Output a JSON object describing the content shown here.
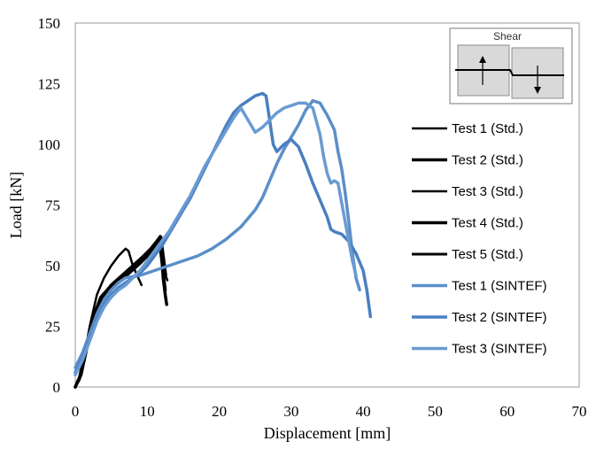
{
  "chart_data": {
    "type": "line",
    "xlabel": "Displacement [mm]",
    "ylabel": "Load [kN]",
    "xlim": [
      0,
      70
    ],
    "ylim": [
      0,
      150
    ],
    "xticks": [
      0,
      10,
      20,
      30,
      40,
      50,
      60,
      70
    ],
    "yticks": [
      0,
      25,
      50,
      75,
      100,
      125,
      150
    ],
    "grid": false,
    "legend_position": "right",
    "inset_label": "Shear",
    "series": [
      {
        "name": "Test 1 (Std.)",
        "color": "#000000",
        "width": 2.5,
        "points": [
          [
            0,
            0
          ],
          [
            0.6,
            3
          ],
          [
            1.2,
            12
          ],
          [
            2,
            25
          ],
          [
            3,
            38
          ],
          [
            4,
            45
          ],
          [
            5,
            50
          ],
          [
            6,
            54
          ],
          [
            7,
            57
          ],
          [
            7.4,
            56
          ],
          [
            8,
            50
          ],
          [
            8.6,
            46
          ],
          [
            9.2,
            42
          ]
        ]
      },
      {
        "name": "Test 2 (Std.)",
        "color": "#000000",
        "width": 3.5,
        "points": [
          [
            0,
            0
          ],
          [
            0.8,
            5
          ],
          [
            1.6,
            16
          ],
          [
            2.5,
            28
          ],
          [
            3.5,
            36
          ],
          [
            5,
            42
          ],
          [
            6.5,
            46
          ],
          [
            8,
            50
          ],
          [
            9.5,
            54
          ],
          [
            10.5,
            57
          ],
          [
            11.3,
            60
          ],
          [
            11.8,
            62
          ],
          [
            12,
            55
          ],
          [
            12.2,
            45
          ],
          [
            12.5,
            38
          ],
          [
            12.7,
            34
          ]
        ]
      },
      {
        "name": "Test 3 (Std.)",
        "color": "#000000",
        "width": 2.5,
        "points": [
          [
            0,
            0
          ],
          [
            0.7,
            4
          ],
          [
            1.5,
            14
          ],
          [
            2.3,
            24
          ],
          [
            3.3,
            33
          ],
          [
            4.5,
            39
          ],
          [
            6,
            43
          ],
          [
            7.5,
            48
          ],
          [
            9,
            52
          ],
          [
            10.5,
            57
          ],
          [
            11.5,
            61
          ],
          [
            12,
            54
          ],
          [
            12.4,
            47
          ],
          [
            12.8,
            44
          ]
        ]
      },
      {
        "name": "Test 4 (Std.)",
        "color": "#000000",
        "width": 3.5,
        "points": [
          [
            0,
            0
          ],
          [
            0.6,
            4
          ],
          [
            1.4,
            15
          ],
          [
            2.2,
            26
          ],
          [
            3.2,
            34
          ],
          [
            4.5,
            39
          ],
          [
            6,
            43
          ],
          [
            7.5,
            47
          ],
          [
            9,
            51
          ],
          [
            10,
            54
          ],
          [
            11,
            58
          ],
          [
            11.7,
            60
          ],
          [
            12.1,
            50
          ],
          [
            12.5,
            40
          ]
        ]
      },
      {
        "name": "Test 5 (Std.)",
        "color": "#000000",
        "width": 3,
        "points": [
          [
            0,
            0
          ],
          [
            0.7,
            5
          ],
          [
            1.6,
            17
          ],
          [
            2.5,
            29
          ],
          [
            3.5,
            37
          ],
          [
            5,
            42
          ],
          [
            6.5,
            46
          ],
          [
            8,
            50
          ],
          [
            9.5,
            53
          ],
          [
            10.8,
            56
          ],
          [
            11.5,
            59
          ],
          [
            11.9,
            62
          ],
          [
            12.2,
            55
          ],
          [
            12.6,
            46
          ]
        ]
      },
      {
        "name": "Test 1 (SINTEF)",
        "color": "#5b8fc9",
        "width": 3.5,
        "points": [
          [
            0,
            8
          ],
          [
            1,
            14
          ],
          [
            2,
            22
          ],
          [
            3,
            30
          ],
          [
            4,
            36
          ],
          [
            5,
            40
          ],
          [
            6,
            43
          ],
          [
            7,
            45
          ],
          [
            9,
            46
          ],
          [
            11,
            48
          ],
          [
            13,
            50
          ],
          [
            15,
            52
          ],
          [
            17,
            54
          ],
          [
            19,
            57
          ],
          [
            21,
            61
          ],
          [
            23,
            66
          ],
          [
            25,
            73
          ],
          [
            26,
            78
          ],
          [
            27,
            85
          ],
          [
            28,
            92
          ],
          [
            29,
            98
          ],
          [
            30,
            103
          ],
          [
            31,
            108
          ],
          [
            32,
            114
          ],
          [
            33,
            118
          ],
          [
            34,
            117
          ],
          [
            35,
            112
          ],
          [
            36,
            106
          ],
          [
            36.5,
            97
          ],
          [
            37,
            90
          ],
          [
            37.5,
            80
          ],
          [
            38,
            68
          ],
          [
            38.5,
            55
          ],
          [
            39,
            45
          ],
          [
            39.5,
            40
          ]
        ]
      },
      {
        "name": "Test 2 (SINTEF)",
        "color": "#4a7fc0",
        "width": 3.5,
        "points": [
          [
            0,
            6
          ],
          [
            1,
            12
          ],
          [
            2,
            20
          ],
          [
            3,
            28
          ],
          [
            4,
            34
          ],
          [
            5,
            38
          ],
          [
            6,
            41
          ],
          [
            7,
            43
          ],
          [
            8,
            45
          ],
          [
            9,
            47
          ],
          [
            10,
            50
          ],
          [
            11,
            54
          ],
          [
            12,
            58
          ],
          [
            13,
            63
          ],
          [
            14,
            68
          ],
          [
            15,
            73
          ],
          [
            16,
            78
          ],
          [
            17,
            84
          ],
          [
            18,
            90
          ],
          [
            19,
            96
          ],
          [
            20,
            102
          ],
          [
            21,
            108
          ],
          [
            22,
            113
          ],
          [
            23,
            116
          ],
          [
            24,
            118
          ],
          [
            25,
            120
          ],
          [
            26,
            121
          ],
          [
            26.5,
            120
          ],
          [
            27,
            110
          ],
          [
            27.5,
            100
          ],
          [
            28,
            97
          ],
          [
            29,
            100
          ],
          [
            30,
            102
          ],
          [
            31,
            99
          ],
          [
            32,
            92
          ],
          [
            33,
            84
          ],
          [
            34,
            77
          ],
          [
            35,
            70
          ],
          [
            35.5,
            65
          ],
          [
            36,
            64
          ],
          [
            37,
            63
          ],
          [
            38,
            60
          ],
          [
            39,
            55
          ],
          [
            40,
            48
          ],
          [
            40.5,
            40
          ],
          [
            41,
            29
          ]
        ]
      },
      {
        "name": "Test 3 (SINTEF)",
        "color": "#6a9bd2",
        "width": 3.5,
        "points": [
          [
            0,
            5
          ],
          [
            1,
            11
          ],
          [
            2,
            19
          ],
          [
            3,
            27
          ],
          [
            4,
            33
          ],
          [
            5,
            37
          ],
          [
            6,
            40
          ],
          [
            7,
            42
          ],
          [
            8,
            45
          ],
          [
            9,
            48
          ],
          [
            10,
            52
          ],
          [
            11,
            56
          ],
          [
            12,
            60
          ],
          [
            13,
            64
          ],
          [
            14,
            69
          ],
          [
            15,
            74
          ],
          [
            16,
            79
          ],
          [
            17,
            85
          ],
          [
            18,
            91
          ],
          [
            19,
            96
          ],
          [
            20,
            101
          ],
          [
            21,
            106
          ],
          [
            22,
            111
          ],
          [
            23,
            115
          ],
          [
            24,
            110
          ],
          [
            25,
            105
          ],
          [
            26,
            107
          ],
          [
            27,
            110
          ],
          [
            28,
            113
          ],
          [
            29,
            115
          ],
          [
            30,
            116
          ],
          [
            31,
            117
          ],
          [
            32,
            117
          ],
          [
            33,
            115
          ],
          [
            34,
            104
          ],
          [
            34.5,
            95
          ],
          [
            35,
            88
          ],
          [
            35.5,
            84
          ],
          [
            36,
            85
          ],
          [
            36.5,
            84
          ],
          [
            37,
            76
          ],
          [
            37.5,
            68
          ],
          [
            38,
            60
          ],
          [
            38.5,
            52
          ],
          [
            39,
            46
          ]
        ]
      }
    ]
  }
}
